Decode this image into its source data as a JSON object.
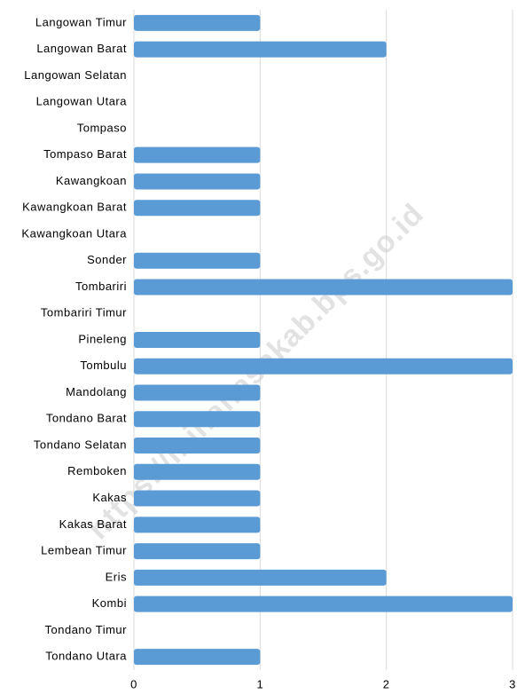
{
  "chart_data": {
    "type": "bar",
    "orientation": "horizontal",
    "categories": [
      "Langowan Timur",
      "Langowan Barat",
      "Langowan Selatan",
      "Langowan Utara",
      "Tompaso",
      "Tompaso Barat",
      "Kawangkoan",
      "Kawangkoan Barat",
      "Kawangkoan Utara",
      "Sonder",
      "Tombariri",
      "Tombariri Timur",
      "Pineleng",
      "Tombulu",
      "Mandolang",
      "Tondano Barat",
      "Tondano Selatan",
      "Remboken",
      "Kakas",
      "Kakas Barat",
      "Lembean Timur",
      "Eris",
      "Kombi",
      "Tondano Timur",
      "Tondano Utara"
    ],
    "values": [
      1,
      2,
      0,
      0,
      0,
      1,
      1,
      1,
      0,
      1,
      3,
      0,
      1,
      3,
      1,
      1,
      1,
      1,
      1,
      1,
      1,
      2,
      3,
      0,
      1
    ],
    "color": "#5b9bd5",
    "xlim": [
      0,
      3
    ],
    "xticks": [
      0,
      1,
      2,
      3
    ],
    "grid": true,
    "watermark": "https://minahasakab.bps.go.id"
  }
}
